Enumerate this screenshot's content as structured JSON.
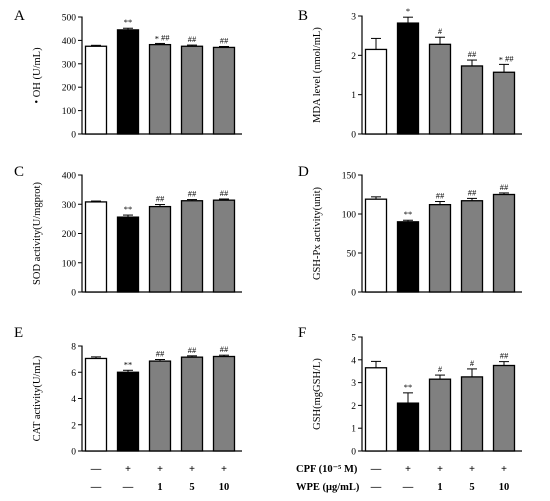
{
  "colors": {
    "control": "#ffffff",
    "cpf": "#000000",
    "wpe": "#808080",
    "axis": "#000000",
    "sig": "#555555"
  },
  "treatment_rows": [
    {
      "label": "CPF  (10⁻⁵ M)",
      "values": [
        "—",
        "+",
        "+",
        "+",
        "+"
      ]
    },
    {
      "label": "WPE (μg/mL)",
      "values": [
        "—",
        "—",
        "1",
        "5",
        "10"
      ]
    }
  ],
  "chart_data": [
    {
      "type": "bar",
      "letter": "A",
      "ylabel": "• OH (U/mL)",
      "ylim": [
        0,
        500
      ],
      "yticks": [
        0,
        100,
        200,
        300,
        400,
        500
      ],
      "values": [
        375,
        445,
        382,
        375,
        370
      ],
      "errors": [
        4,
        7,
        5,
        5,
        4
      ],
      "sig": [
        "",
        "**",
        "*,##",
        "##",
        "##"
      ]
    },
    {
      "type": "bar",
      "letter": "B",
      "ylabel": "MDA level (nmol/mL)",
      "ylim": [
        0,
        3
      ],
      "yticks": [
        0,
        1,
        2,
        3
      ],
      "values": [
        2.15,
        2.82,
        2.28,
        1.73,
        1.57
      ],
      "errors": [
        0.28,
        0.15,
        0.18,
        0.15,
        0.2
      ],
      "sig": [
        "",
        "*",
        "#",
        "##",
        "*,##"
      ]
    },
    {
      "type": "bar",
      "letter": "C",
      "ylabel": "SOD activity(U/mgprot)",
      "ylim": [
        0,
        400
      ],
      "yticks": [
        0,
        100,
        200,
        300,
        400
      ],
      "values": [
        308,
        256,
        292,
        312,
        314
      ],
      "errors": [
        3,
        7,
        7,
        4,
        4
      ],
      "sig": [
        "",
        "**",
        "##",
        "##",
        "##"
      ]
    },
    {
      "type": "bar",
      "letter": "D",
      "ylabel": "GSH-Px activity(unit)",
      "ylim": [
        0,
        150
      ],
      "yticks": [
        0,
        50,
        100,
        150
      ],
      "values": [
        119,
        90,
        112,
        117,
        125
      ],
      "errors": [
        3,
        2,
        4,
        3,
        2
      ],
      "sig": [
        "",
        "**",
        "##",
        "##",
        "##"
      ]
    },
    {
      "type": "bar",
      "letter": "E",
      "ylabel": "CAT activity(U/mL)",
      "ylim": [
        0,
        8
      ],
      "yticks": [
        0,
        2,
        4,
        6,
        8
      ],
      "values": [
        7.05,
        6.0,
        6.85,
        7.15,
        7.2
      ],
      "errors": [
        0.12,
        0.15,
        0.12,
        0.1,
        0.1
      ],
      "sig": [
        "",
        "**",
        "##",
        "##",
        "##"
      ]
    },
    {
      "type": "bar",
      "letter": "F",
      "ylabel": "GSH(mgGSH/L)",
      "ylim": [
        0,
        5
      ],
      "yticks": [
        0,
        1,
        2,
        3,
        4,
        5
      ],
      "values": [
        3.65,
        2.1,
        3.15,
        3.25,
        3.75
      ],
      "errors": [
        0.28,
        0.45,
        0.18,
        0.35,
        0.17
      ],
      "sig": [
        "",
        "**",
        "#",
        "#",
        "##"
      ]
    }
  ]
}
